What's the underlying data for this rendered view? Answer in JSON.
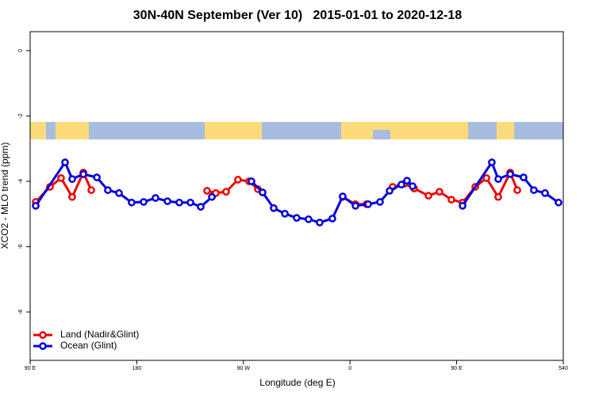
{
  "chart_data": {
    "type": "line",
    "title": "30N-40N September (Ver 10)   2015-01-01 to 2020-12-18",
    "x_label": "Longitude (deg E)",
    "y_label": "XCO2 - MLO trend (ppm)",
    "xlim": [
      90,
      540
    ],
    "xticks": [
      {
        "value": 90,
        "label": "90 E"
      },
      180,
      {
        "value": 270,
        "label": "90 W"
      },
      {
        "value": 360,
        "label": "0"
      },
      {
        "value": 450,
        "label": "90 E"
      },
      540
    ],
    "ylim": [
      -9.48,
      0.58
    ],
    "yticks": [
      0,
      -2,
      -4,
      -6,
      -8
    ],
    "legend": "bottom-left",
    "series": [
      {
        "name": "Land (Nadir&Glint)",
        "color": "#ee0000",
        "x": [
          94.7,
          106.7,
          116.1,
          125.5,
          134.9,
          141.6,
          null,
          239.3,
          246.7,
          255.4,
          265.4,
          274.8,
          282.2,
          null,
          353.8,
          364.6,
          373.9,
          null,
          396.0,
          406.1,
          414.1,
          426.2,
          435.5,
          445.6,
          455.0,
          465.7,
          475.1,
          485.1,
          495.2,
          501.2
        ],
        "values": [
          -4.63,
          -4.17,
          -3.9,
          -4.48,
          -3.73,
          -4.27,
          null,
          -4.29,
          -4.36,
          -4.32,
          -3.95,
          -4.0,
          -4.24,
          null,
          -4.48,
          -4.7,
          -4.7,
          null,
          -4.17,
          -4.07,
          -4.22,
          -4.44,
          -4.32,
          -4.56,
          -4.65,
          -4.17,
          -3.9,
          -4.48,
          -3.73,
          -4.27
        ]
      },
      {
        "name": "Ocean (Glint)",
        "color": "#0000dd",
        "x": [
          94.7,
          119.5,
          125.5,
          134.9,
          146.3,
          155.6,
          165.0,
          175.7,
          185.8,
          195.8,
          205.9,
          215.9,
          225.3,
          234.0,
          243.4,
          null,
          276.8,
          286.2,
          295.6,
          305.0,
          315.0,
          325.0,
          334.4,
          345.1,
          353.8,
          364.6,
          375.3,
          385.3,
          393.4,
          403.4,
          408.1,
          412.8,
          null,
          455.0,
          479.7,
          485.1,
          495.2,
          506.5,
          515.2,
          524.6,
          536.0
        ],
        "values": [
          -4.75,
          -3.42,
          -3.93,
          -3.78,
          -3.88,
          -4.27,
          -4.36,
          -4.65,
          -4.63,
          -4.51,
          -4.61,
          -4.65,
          -4.65,
          -4.78,
          -4.48,
          null,
          -4.0,
          -4.34,
          -4.82,
          -4.99,
          -5.12,
          -5.16,
          -5.26,
          -5.14,
          -4.46,
          -4.75,
          -4.7,
          -4.63,
          -4.29,
          -4.1,
          -3.98,
          -4.15,
          null,
          -4.75,
          -3.42,
          -3.93,
          -3.78,
          -3.88,
          -4.27,
          -4.36,
          -4.65
        ]
      }
    ]
  }
}
